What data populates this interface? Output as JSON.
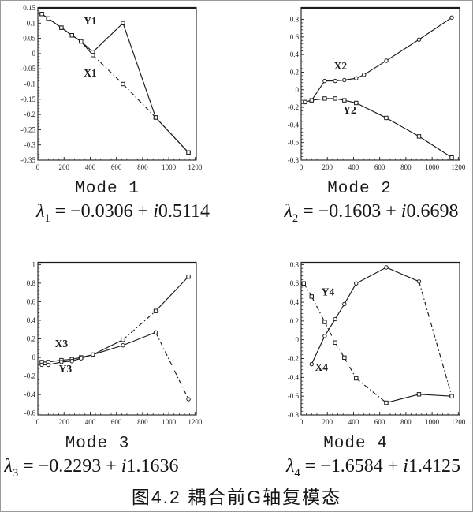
{
  "page": {
    "bg": "#ffffff",
    "ink": "#1c1c1c",
    "border": "#9a9a9a"
  },
  "figure": {
    "caption": "图4.2 耦合前G轴复模态"
  },
  "modes": [
    {
      "title": "Mode 1",
      "lambda": {
        "sym": "λ",
        "sub": "1",
        "pre": "= −0.0306 + ",
        "i_sym": "i",
        "im": "0.5114"
      }
    },
    {
      "title": "Mode 2",
      "lambda": {
        "sym": "λ",
        "sub": "2",
        "pre": "= −0.1603 + ",
        "i_sym": "i",
        "im": "0.6698"
      }
    },
    {
      "title": "Mode 3",
      "lambda": {
        "sym": "λ",
        "sub": "3",
        "pre": "= −0.2293 + ",
        "i_sym": "i",
        "im": "1.1636"
      }
    },
    {
      "title": "Mode 4",
      "lambda": {
        "sym": "λ",
        "sub": "4",
        "pre": "= −1.6584 + ",
        "i_sym": "i",
        "im": "1.4125"
      }
    }
  ],
  "chart_data": [
    {
      "type": "line",
      "title": "Mode 1",
      "xlabel": "",
      "ylabel": "",
      "xlim": [
        0,
        1210
      ],
      "ylim": [
        -0.35,
        0.15
      ],
      "xticks": [
        0,
        200,
        400,
        600,
        800,
        1000,
        1200
      ],
      "yticks": [
        0.15,
        0.1,
        0.05,
        0,
        -0.05,
        -0.1,
        -0.15,
        -0.2,
        -0.25,
        -0.3,
        -0.35
      ],
      "grid": false,
      "series": [
        {
          "name": "Y1",
          "marker": "square",
          "label_at": [
            400,
            0.095
          ],
          "dash_segments": [],
          "x": [
            30,
            80,
            180,
            260,
            330,
            420,
            650,
            900,
            1150
          ],
          "y": [
            0.13,
            0.115,
            0.085,
            0.06,
            0.04,
            0.005,
            0.1,
            -0.21,
            -0.325
          ]
        },
        {
          "name": "X1",
          "marker": "square",
          "label_at": [
            400,
            -0.075
          ],
          "dash_segments": [
            5,
            6
          ],
          "x": [
            30,
            80,
            180,
            260,
            330,
            420,
            650,
            900,
            1150
          ],
          "y": [
            0.13,
            0.115,
            0.085,
            0.06,
            0.04,
            -0.005,
            -0.1,
            -0.21,
            -0.325
          ]
        }
      ]
    },
    {
      "type": "line",
      "title": "Mode 2",
      "xlabel": "",
      "ylabel": "",
      "xlim": [
        0,
        1210
      ],
      "ylim": [
        -0.8,
        0.93
      ],
      "xticks": [
        0,
        200,
        400,
        600,
        800,
        1000,
        1200
      ],
      "yticks": [
        0.8,
        0.6,
        0.4,
        0.2,
        0,
        -0.2,
        -0.4,
        -0.6,
        -0.8
      ],
      "grid": false,
      "series": [
        {
          "name": "X2",
          "marker": "circle",
          "label_at": [
            300,
            0.23
          ],
          "dash_segments": [],
          "x": [
            30,
            80,
            180,
            260,
            330,
            420,
            480,
            650,
            900,
            1150
          ],
          "y": [
            -0.14,
            -0.12,
            0.1,
            0.1,
            0.11,
            0.13,
            0.17,
            0.33,
            0.57,
            0.82
          ]
        },
        {
          "name": "Y2",
          "marker": "square",
          "label_at": [
            370,
            -0.27
          ],
          "dash_segments": [],
          "x": [
            30,
            80,
            180,
            260,
            330,
            420,
            650,
            900,
            1150
          ],
          "y": [
            -0.14,
            -0.12,
            -0.1,
            -0.1,
            -0.12,
            -0.15,
            -0.32,
            -0.53,
            -0.77
          ]
        }
      ]
    },
    {
      "type": "line",
      "title": "Mode 3",
      "xlabel": "",
      "ylabel": "",
      "xlim": [
        0,
        1210
      ],
      "ylim": [
        -0.62,
        1.02
      ],
      "xticks": [
        0,
        200,
        400,
        600,
        800,
        1000,
        1200
      ],
      "yticks": [
        1,
        0.8,
        0.6,
        0.4,
        0.2,
        0,
        -0.2,
        -0.4,
        -0.6
      ],
      "grid": false,
      "series": [
        {
          "name": "X3",
          "marker": "square",
          "label_at": [
            180,
            0.11
          ],
          "dash_segments": [
            6
          ],
          "x": [
            30,
            80,
            180,
            260,
            330,
            420,
            650,
            900,
            1150
          ],
          "y": [
            -0.05,
            -0.05,
            -0.03,
            -0.02,
            0.0,
            0.03,
            0.19,
            0.5,
            0.87
          ]
        },
        {
          "name": "Y3",
          "marker": "circle",
          "label_at": [
            210,
            -0.16
          ],
          "dash_segments": [
            7
          ],
          "x": [
            30,
            80,
            180,
            260,
            330,
            420,
            650,
            900,
            1150
          ],
          "y": [
            -0.08,
            -0.08,
            -0.05,
            -0.04,
            -0.01,
            0.03,
            0.13,
            0.27,
            -0.45
          ]
        }
      ]
    },
    {
      "type": "line",
      "title": "Mode 4",
      "xlabel": "",
      "ylabel": "",
      "xlim": [
        0,
        1210
      ],
      "ylim": [
        -0.8,
        0.82
      ],
      "xticks": [
        0,
        200,
        400,
        600,
        800,
        1000,
        1200
      ],
      "yticks": [
        0.8,
        0.6,
        0.4,
        0.2,
        0,
        -0.2,
        -0.4,
        -0.6,
        -0.8
      ],
      "grid": false,
      "series": [
        {
          "name": "X4",
          "marker": "circle",
          "label_at": [
            155,
            -0.33
          ],
          "dash_segments": [
            6
          ],
          "x": [
            80,
            180,
            260,
            330,
            420,
            650,
            900,
            1150
          ],
          "y": [
            -0.26,
            0.04,
            0.22,
            0.38,
            0.6,
            0.77,
            0.62,
            -0.6
          ]
        },
        {
          "name": "Y4",
          "marker": "square",
          "label_at": [
            205,
            0.47
          ],
          "dash_segments": [
            0,
            1,
            2,
            3,
            4,
            5
          ],
          "x": [
            20,
            80,
            180,
            260,
            330,
            420,
            650,
            900,
            1150
          ],
          "y": [
            0.6,
            0.46,
            0.19,
            -0.03,
            -0.19,
            -0.41,
            -0.67,
            -0.58,
            -0.6
          ]
        }
      ]
    }
  ]
}
